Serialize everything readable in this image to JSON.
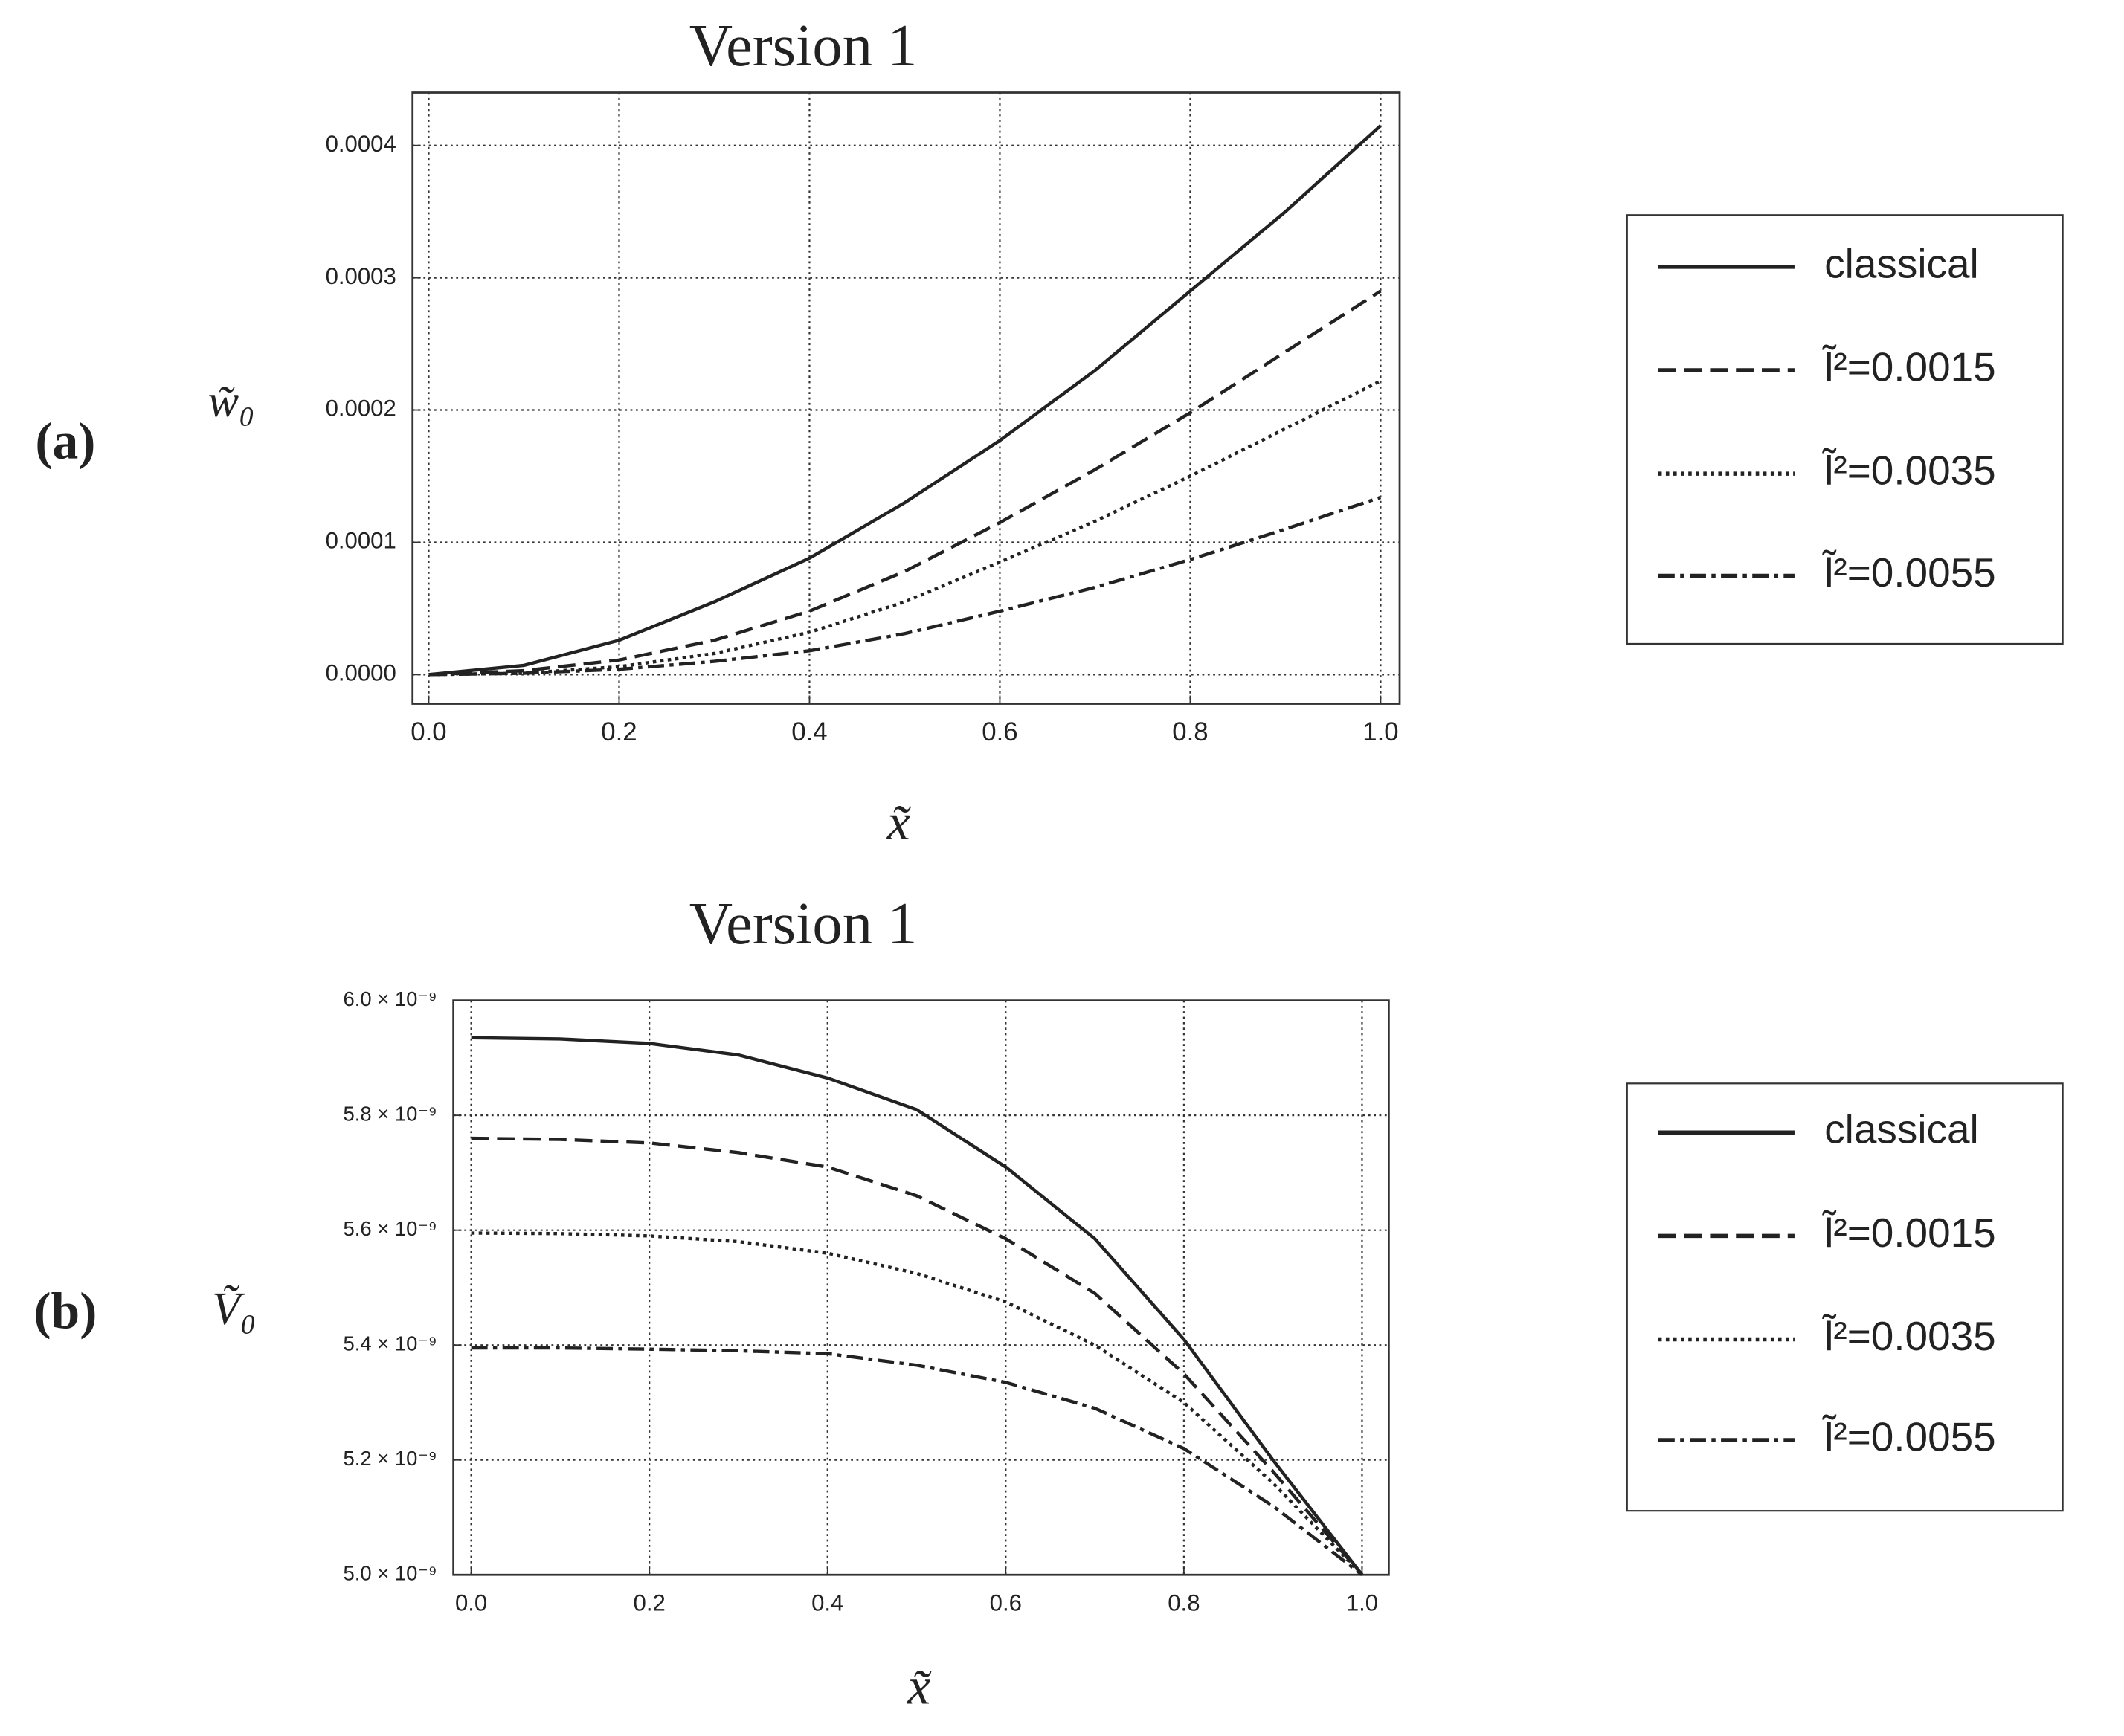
{
  "chart_data": [
    {
      "type": "line",
      "title": "Version 1",
      "panel_label": "(a)",
      "ylabel": "w̃₀",
      "xlabel": "x̃",
      "x": [
        0,
        0.1,
        0.2,
        0.3,
        0.4,
        0.5,
        0.6,
        0.7,
        0.8,
        0.9,
        1.0
      ],
      "xlim": [
        -0.017,
        1.02
      ],
      "ylim": [
        -2.2e-05,
        0.00044
      ],
      "grid": true,
      "xticks": [
        {
          "value": 0,
          "label": "0.0"
        },
        0.2,
        0.4,
        0.6,
        0.8,
        {
          "value": 1,
          "label": "1.0"
        }
      ],
      "yticks": [
        {
          "value": 0,
          "label": "0.0000"
        },
        {
          "value": 0.0001,
          "label": "0.0001"
        },
        {
          "value": 0.0002,
          "label": "0.0002"
        },
        {
          "value": 0.0003,
          "label": "0.0003"
        },
        {
          "value": 0.0004,
          "label": "0.0004"
        }
      ],
      "series": [
        {
          "name": "classical",
          "color": "#222222",
          "style": "solid",
          "values": [
            0,
            7e-06,
            2.6e-05,
            5.5e-05,
            8.8e-05,
            0.00013,
            0.000177,
            0.00023,
            0.00029,
            0.00035,
            0.000415
          ]
        },
        {
          "name": "l̃²=0.0015",
          "color": "#222222",
          "style": "dashed",
          "values": [
            0,
            3e-06,
            1.1e-05,
            2.6e-05,
            4.8e-05,
            7.8e-05,
            0.000115,
            0.000155,
            0.000198,
            0.000244,
            0.00029
          ]
        },
        {
          "name": "l̃²=0.0035",
          "color": "#222222",
          "style": "dotted",
          "values": [
            0,
            1e-06,
            6e-06,
            1.6e-05,
            3.2e-05,
            5.5e-05,
            8.5e-05,
            0.000116,
            0.00015,
            0.000186,
            0.000222
          ]
        },
        {
          "name": "l̃²=0.0055",
          "color": "#222222",
          "style": "dashdot",
          "values": [
            0,
            1e-06,
            4e-06,
            1e-05,
            1.8e-05,
            3.1e-05,
            4.8e-05,
            6.6e-05,
            8.7e-05,
            0.00011,
            0.000134
          ]
        }
      ]
    },
    {
      "type": "line",
      "title": "Version 1",
      "panel_label": "(b)",
      "ylabel": "Ṽ₀",
      "xlabel": "x̃",
      "x": [
        0,
        0.1,
        0.2,
        0.3,
        0.4,
        0.5,
        0.6,
        0.7,
        0.8,
        0.9,
        1.0
      ],
      "xlim": [
        -0.02,
        1.03
      ],
      "ylim": [
        5e-09,
        6e-09
      ],
      "grid": true,
      "xticks": [
        {
          "value": 0,
          "label": "0.0"
        },
        0.2,
        0.4,
        0.6,
        0.8,
        {
          "value": 1,
          "label": "1.0"
        }
      ],
      "yticks": [
        {
          "value": 5e-09,
          "label": "5.0 × 10⁻⁹"
        },
        {
          "value": 5.2e-09,
          "label": "5.2 × 10⁻⁹"
        },
        {
          "value": 5.4e-09,
          "label": "5.4 × 10⁻⁹"
        },
        {
          "value": 5.6e-09,
          "label": "5.6 × 10⁻⁹"
        },
        {
          "value": 5.8e-09,
          "label": "5.8 × 10⁻⁹"
        },
        {
          "value": 6e-09,
          "label": "6.0 × 10⁻⁹"
        }
      ],
      "series": [
        {
          "name": "classical",
          "color": "#222222",
          "style": "solid",
          "values": [
            5.935e-09,
            5.933e-09,
            5.925e-09,
            5.905e-09,
            5.865e-09,
            5.81e-09,
            5.71e-09,
            5.585e-09,
            5.41e-09,
            5.2e-09,
            5e-09
          ]
        },
        {
          "name": "l̃²=0.0015",
          "color": "#222222",
          "style": "dashed",
          "values": [
            5.76e-09,
            5.758e-09,
            5.752e-09,
            5.735e-09,
            5.71e-09,
            5.66e-09,
            5.585e-09,
            5.49e-09,
            5.35e-09,
            5.18e-09,
            5e-09
          ]
        },
        {
          "name": "l̃²=0.0035",
          "color": "#222222",
          "style": "dotted",
          "values": [
            5.595e-09,
            5.594e-09,
            5.59e-09,
            5.58e-09,
            5.56e-09,
            5.525e-09,
            5.475e-09,
            5.4e-09,
            5.3e-09,
            5.16e-09,
            5e-09
          ]
        },
        {
          "name": "l̃²=0.0055",
          "color": "#222222",
          "style": "dashdot",
          "values": [
            5.395e-09,
            5.395e-09,
            5.393e-09,
            5.39e-09,
            5.385e-09,
            5.365e-09,
            5.335e-09,
            5.29e-09,
            5.22e-09,
            5.12e-09,
            5e-09
          ]
        }
      ]
    }
  ]
}
